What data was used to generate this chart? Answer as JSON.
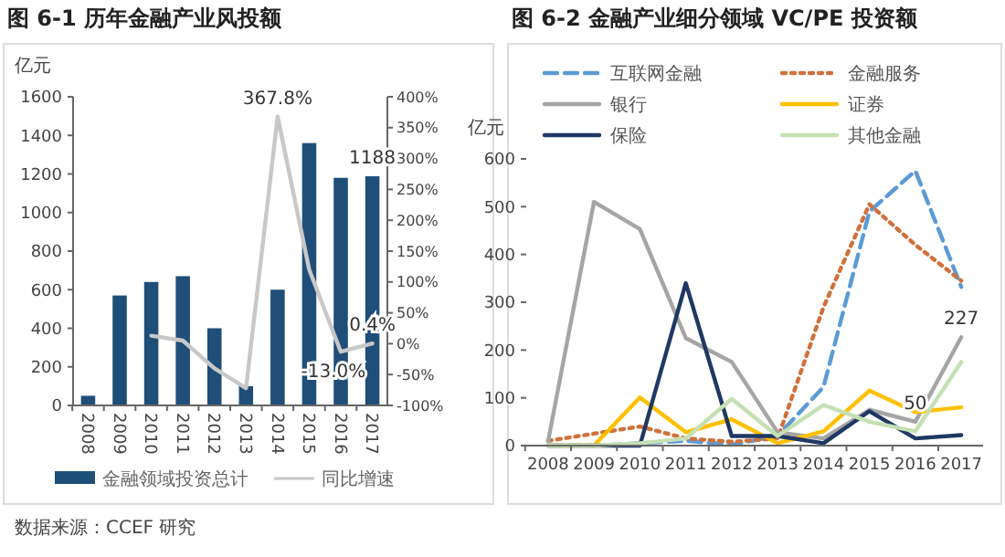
{
  "chart_data": [
    {
      "type": "bar",
      "title": "图 6-1  历年金融产业风投额",
      "ylabel": "亿元",
      "categories": [
        "2008",
        "2009",
        "2010",
        "2011",
        "2012",
        "2013",
        "2014",
        "2015",
        "2016",
        "2017"
      ],
      "ylim": [
        0,
        1600
      ],
      "yticks": [
        0,
        200,
        400,
        600,
        800,
        1000,
        1200,
        1400,
        1600
      ],
      "y2lim": [
        -100,
        400
      ],
      "y2ticks": [
        {
          "value": -100,
          "label": "-100%"
        },
        {
          "value": -50,
          "label": "-50%"
        },
        {
          "value": 0,
          "label": "0%"
        },
        {
          "value": 50,
          "label": "50%"
        },
        {
          "value": 100,
          "label": "100%"
        },
        {
          "value": 150,
          "label": "150%"
        },
        {
          "value": 200,
          "label": "200%"
        },
        {
          "value": 250,
          "label": "250%"
        },
        {
          "value": 300,
          "label": "300%"
        },
        {
          "value": 350,
          "label": "350%"
        },
        {
          "value": 400,
          "label": "400%"
        }
      ],
      "legend": "bottom",
      "annotations": [
        "数据来源：CCEF 研究"
      ],
      "series": [
        {
          "name": "金融领域投资总计",
          "color": "#1f4e79",
          "values": [
            50,
            570,
            640,
            670,
            400,
            100,
            600,
            1360,
            1180,
            1188
          ],
          "value_labels": [
            null,
            null,
            null,
            null,
            null,
            null,
            null,
            null,
            null,
            "1188"
          ]
        },
        {
          "name": "同比增速",
          "type": "line",
          "axis": "y2",
          "color": "#c8c8c8",
          "line_style": "solid",
          "values": [
            null,
            null,
            13,
            5,
            -40,
            -72,
            367.8,
            120,
            -13.0,
            0.4
          ],
          "value_labels": [
            null,
            null,
            null,
            null,
            null,
            null,
            "367.8%",
            null,
            "-13.0%",
            "0.4%"
          ]
        }
      ]
    },
    {
      "type": "line",
      "title": "图 6-2  金融产业细分领域 VC/PE 投资额",
      "ylabel": "亿元",
      "categories": [
        "2008",
        "2009",
        "2010",
        "2011",
        "2012",
        "2013",
        "2014",
        "2015",
        "2016",
        "2017"
      ],
      "ylim": [
        0,
        600
      ],
      "yticks": [
        0,
        100,
        200,
        300,
        400,
        500,
        600
      ],
      "legend": "top",
      "series": [
        {
          "name": "互联网金融",
          "color": "#5b9bd5",
          "line_style": "dashed",
          "values": [
            0,
            0,
            5,
            10,
            2,
            20,
            123,
            490,
            575,
            332
          ]
        },
        {
          "name": "金融服务",
          "color": "#d0703a",
          "line_style": "dotted",
          "values": [
            10,
            25,
            40,
            15,
            8,
            15,
            290,
            505,
            420,
            345
          ]
        },
        {
          "name": "银行",
          "color": "#a5a5a5",
          "line_style": "solid",
          "values": [
            9,
            510,
            453,
            225,
            175,
            28,
            15,
            75,
            50,
            227
          ],
          "value_labels": [
            null,
            null,
            null,
            null,
            null,
            null,
            null,
            null,
            "50",
            "227"
          ]
        },
        {
          "name": "证券",
          "color": "#ffc000",
          "line_style": "solid",
          "values": [
            0,
            0,
            101,
            28,
            55,
            5,
            30,
            115,
            70,
            80
          ]
        },
        {
          "name": "保险",
          "color": "#1f3864",
          "line_style": "solid",
          "values": [
            0,
            0,
            0,
            340,
            20,
            20,
            5,
            72,
            15,
            22
          ]
        },
        {
          "name": "其他金融",
          "color": "#c5e0b4",
          "line_style": "solid",
          "values": [
            0,
            0,
            5,
            15,
            98,
            20,
            85,
            50,
            30,
            175
          ]
        }
      ]
    }
  ]
}
